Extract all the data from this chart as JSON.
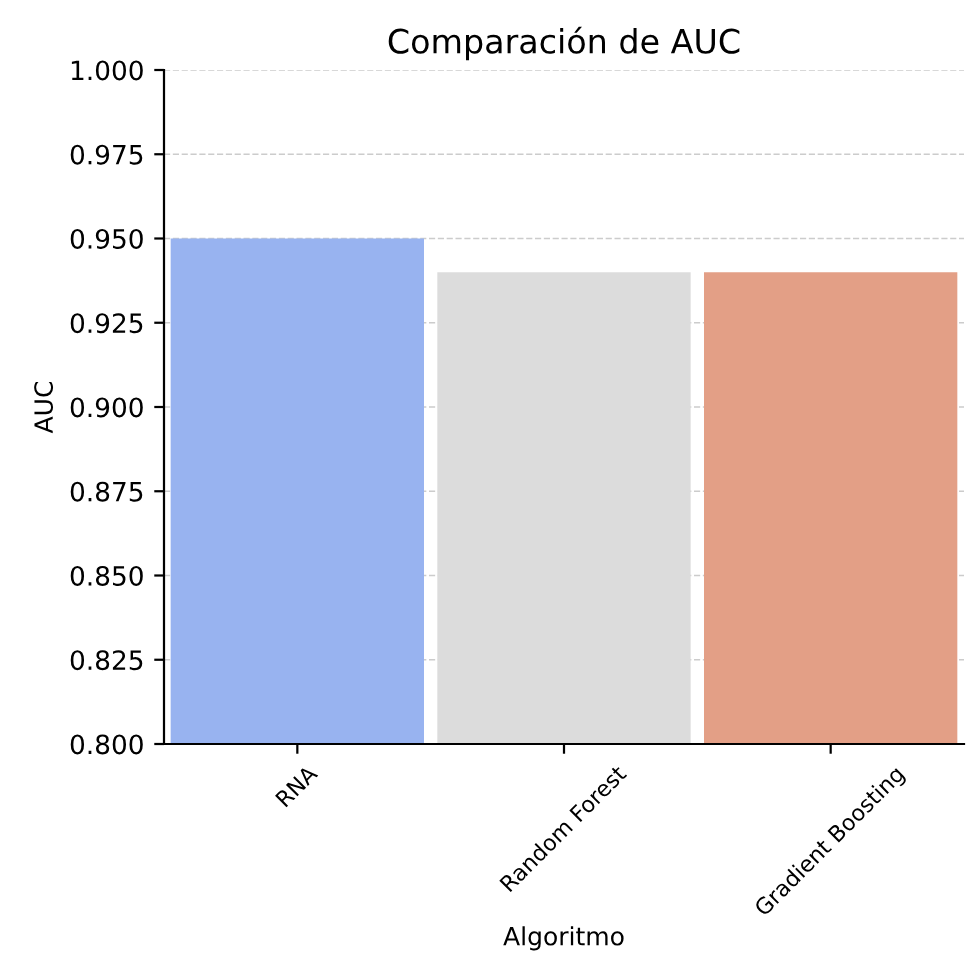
{
  "chart_data": {
    "type": "bar",
    "title": "Comparación de AUC",
    "xlabel": "Algoritmo",
    "ylabel": "AUC",
    "categories": [
      "RNA",
      "Random Forest",
      "Gradient Boosting"
    ],
    "values": [
      0.95,
      0.94,
      0.94
    ],
    "colors": [
      "#98b3f0",
      "#dcdcdc",
      "#e39f86"
    ],
    "ylim": [
      0.8,
      1.0
    ],
    "yticks": [
      {
        "value": 0.8,
        "label": "0.800"
      },
      {
        "value": 0.825,
        "label": "0.825"
      },
      {
        "value": 0.85,
        "label": "0.850"
      },
      {
        "value": 0.875,
        "label": "0.875"
      },
      {
        "value": 0.9,
        "label": "0.900"
      },
      {
        "value": 0.925,
        "label": "0.925"
      },
      {
        "value": 0.95,
        "label": "0.950"
      },
      {
        "value": 0.975,
        "label": "0.975"
      },
      {
        "value": 1.0,
        "label": "1.000"
      }
    ],
    "grid": "y"
  }
}
